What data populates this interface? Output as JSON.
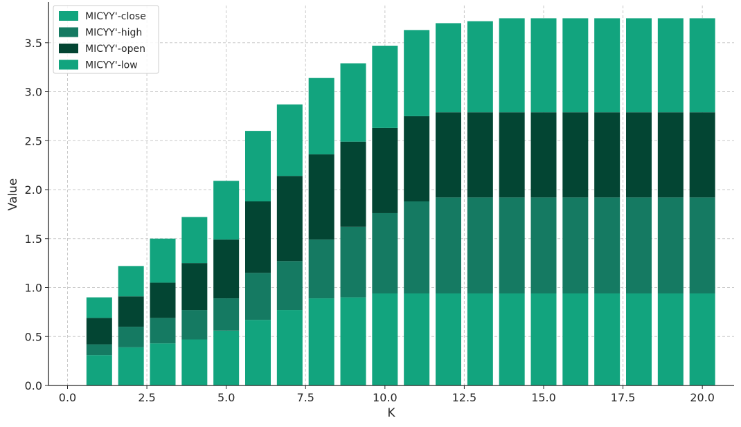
{
  "chart_data": {
    "type": "bar",
    "stacked": true,
    "title": "",
    "xlabel": "K",
    "ylabel": "Value",
    "xlim": [
      -0.6,
      21.0
    ],
    "ylim": [
      0,
      3.88
    ],
    "xticks": [
      0.0,
      2.5,
      5.0,
      7.5,
      10.0,
      12.5,
      15.0,
      17.5,
      20.0
    ],
    "xtick_labels": [
      "0.0",
      "2.5",
      "5.0",
      "7.5",
      "10.0",
      "12.5",
      "15.0",
      "17.5",
      "20.0"
    ],
    "yticks": [
      0.0,
      0.5,
      1.0,
      1.5,
      2.0,
      2.5,
      3.0,
      3.5
    ],
    "ytick_labels": [
      "0.0",
      "0.5",
      "1.0",
      "1.5",
      "2.0",
      "2.5",
      "3.0",
      "3.5"
    ],
    "grid": true,
    "legend_position": "top-left",
    "x": [
      1,
      2,
      3,
      4,
      5,
      6,
      7,
      8,
      9,
      10,
      11,
      12,
      13,
      14,
      15,
      16,
      17,
      18,
      19,
      20
    ],
    "series": [
      {
        "name": "MICYY'-low",
        "color": "#12a47e",
        "values": [
          0.31,
          0.39,
          0.43,
          0.47,
          0.56,
          0.67,
          0.77,
          0.89,
          0.9,
          0.94,
          0.94,
          0.94,
          0.94,
          0.94,
          0.94,
          0.94,
          0.94,
          0.94,
          0.94,
          0.94
        ]
      },
      {
        "name": "MICYY'-high",
        "color": "#157a62",
        "values": [
          0.11,
          0.21,
          0.26,
          0.3,
          0.33,
          0.48,
          0.5,
          0.6,
          0.72,
          0.82,
          0.94,
          0.98,
          0.98,
          0.98,
          0.98,
          0.98,
          0.98,
          0.98,
          0.98,
          0.98
        ]
      },
      {
        "name": "MICYY'-open",
        "color": "#034533",
        "values": [
          0.27,
          0.31,
          0.36,
          0.48,
          0.6,
          0.73,
          0.87,
          0.87,
          0.87,
          0.87,
          0.87,
          0.87,
          0.87,
          0.87,
          0.87,
          0.87,
          0.87,
          0.87,
          0.87,
          0.87
        ]
      },
      {
        "name": "MICYY'-close",
        "color": "#12a47e",
        "values": [
          0.21,
          0.31,
          0.45,
          0.47,
          0.6,
          0.72,
          0.73,
          0.78,
          0.8,
          0.84,
          0.88,
          0.91,
          0.93,
          0.96,
          0.96,
          0.96,
          0.96,
          0.96,
          0.96,
          0.96
        ]
      }
    ],
    "legend": [
      {
        "label": "MICYY'-close",
        "color": "#12a47e"
      },
      {
        "label": "MICYY'-high",
        "color": "#157a62"
      },
      {
        "label": "MICYY'-open",
        "color": "#034533"
      },
      {
        "label": "MICYY'-low",
        "color": "#12a47e"
      }
    ]
  }
}
